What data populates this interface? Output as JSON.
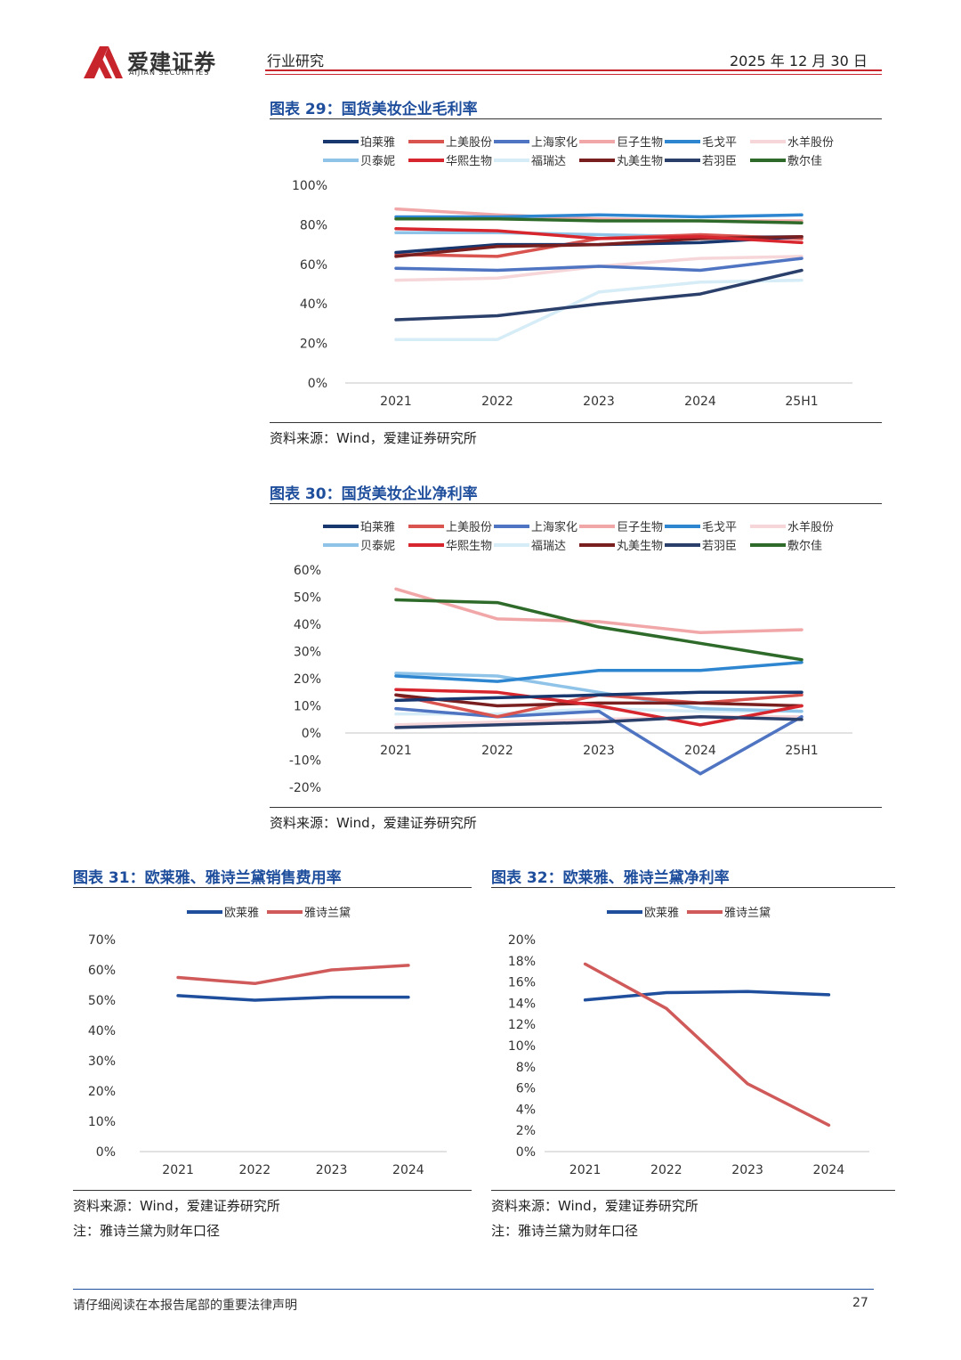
{
  "header": {
    "brand": "爱建证券",
    "brand_en": "AIJIAN SECURITIES",
    "section": "行业研究",
    "date": "2025 年 12 月 30 日"
  },
  "source_text": "资料来源：Wind，爱建证券研究所",
  "note_text": "注：雅诗兰黛为财年口径",
  "footer": {
    "disclaimer": "请仔细阅读在本报告尾部的重要法律声明",
    "page": "27"
  },
  "colors": {
    "accent_red": "#c8242c",
    "title_blue": "#1f4e9c",
    "珀莱雅": "#17376e",
    "上美股份": "#d9534f",
    "上海家化": "#4f74c2",
    "巨子生物": "#f1a7a7",
    "毛戈平": "#2e86d1",
    "水羊股份": "#f6d6d8",
    "贝泰妮": "#8fc3e8",
    "华熙生物": "#d8262e",
    "福瑞达": "#d6ecf6",
    "丸美生物": "#7a1f1f",
    "若羽臣": "#2b3f6b",
    "敷尔佳": "#2e6b2a",
    "欧莱雅": "#1f4e9c",
    "雅诗兰黛": "#d05a5a"
  },
  "charts": [
    {
      "id": "c29",
      "chart_data": {
        "type": "line",
        "title": "图表 29：国货美妆企业毛利率",
        "categories": [
          "2021",
          "2022",
          "2023",
          "2024",
          "25H1"
        ],
        "ylim": [
          0,
          100
        ],
        "yticks": [
          0,
          20,
          40,
          60,
          80,
          100
        ],
        "yticklabels": [
          "0%",
          "20%",
          "40%",
          "60%",
          "80%",
          "100%"
        ],
        "legend": [
          "珀莱雅",
          "上美股份",
          "上海家化",
          "巨子生物",
          "毛戈平",
          "水羊股份",
          "贝泰妮",
          "华熙生物",
          "福瑞达",
          "丸美生物",
          "若羽臣",
          "敷尔佳"
        ],
        "series": [
          {
            "name": "水羊股份",
            "values": [
              52,
              53,
              59,
              63,
              64
            ]
          },
          {
            "name": "福瑞达",
            "values": [
              22,
              22,
              46,
              51,
              52
            ]
          },
          {
            "name": "贝泰妮",
            "values": [
              76,
              76,
              75,
              74,
              74
            ]
          },
          {
            "name": "巨子生物",
            "values": [
              88,
              85,
              83,
              82,
              82
            ]
          },
          {
            "name": "上海家化",
            "values": [
              58,
              57,
              59,
              57,
              63
            ]
          },
          {
            "name": "上美股份",
            "values": [
              65,
              64,
              73,
              75,
              73
            ]
          },
          {
            "name": "珀莱雅",
            "values": [
              66,
              70,
              70,
              71,
              74
            ]
          },
          {
            "name": "丸美生物",
            "values": [
              64,
              69,
              70,
              73,
              74
            ]
          },
          {
            "name": "华熙生物",
            "values": [
              78,
              77,
              73,
              74,
              71
            ]
          },
          {
            "name": "毛戈平",
            "values": [
              84,
              84,
              85,
              84,
              85
            ]
          },
          {
            "name": "敷尔佳",
            "values": [
              83,
              83,
              82,
              82,
              81
            ]
          },
          {
            "name": "若羽臣",
            "values": [
              32,
              34,
              40,
              45,
              57
            ]
          }
        ]
      }
    },
    {
      "id": "c30",
      "chart_data": {
        "type": "line",
        "title": "图表 30：国货美妆企业净利率",
        "categories": [
          "2021",
          "2022",
          "2023",
          "2024",
          "25H1"
        ],
        "ylim": [
          -20,
          60
        ],
        "yticks": [
          -20,
          -10,
          0,
          10,
          20,
          30,
          40,
          50,
          60
        ],
        "yticklabels": [
          "-20%",
          "-10%",
          "0%",
          "10%",
          "20%",
          "30%",
          "40%",
          "50%",
          "60%"
        ],
        "legend": [
          "珀莱雅",
          "上美股份",
          "上海家化",
          "巨子生物",
          "毛戈平",
          "水羊股份",
          "贝泰妮",
          "华熙生物",
          "福瑞达",
          "丸美生物",
          "若羽臣",
          "敷尔佳"
        ],
        "series": [
          {
            "name": "水羊股份",
            "values": [
              3,
              4,
              5,
              6,
              6
            ]
          },
          {
            "name": "福瑞达",
            "values": [
              7,
              7,
              9,
              8,
              8
            ]
          },
          {
            "name": "巨子生物",
            "values": [
              53,
              42,
              41,
              37,
              38
            ]
          },
          {
            "name": "贝泰妮",
            "values": [
              22,
              21,
              15,
              9,
              8
            ]
          },
          {
            "name": "上海家化",
            "values": [
              9,
              6,
              8,
              -15,
              6
            ]
          },
          {
            "name": "上美股份",
            "values": [
              14,
              6,
              14,
              11,
              14
            ]
          },
          {
            "name": "丸美生物",
            "values": [
              14,
              10,
              11,
              11,
              10
            ]
          },
          {
            "name": "华熙生物",
            "values": [
              16,
              15,
              10,
              3,
              10
            ]
          },
          {
            "name": "珀莱雅",
            "values": [
              12,
              13,
              14,
              15,
              15
            ]
          },
          {
            "name": "毛戈平",
            "values": [
              21,
              19,
              23,
              23,
              26
            ]
          },
          {
            "name": "若羽臣",
            "values": [
              2,
              3,
              4,
              6,
              5
            ]
          },
          {
            "name": "敷尔佳",
            "values": [
              49,
              48,
              39,
              33,
              27
            ]
          }
        ]
      }
    },
    {
      "id": "c31",
      "chart_data": {
        "type": "line",
        "title": "图表 31：欧莱雅、雅诗兰黛销售费用率",
        "categories": [
          "2021",
          "2022",
          "2023",
          "2024"
        ],
        "ylim": [
          0,
          70
        ],
        "yticks": [
          0,
          10,
          20,
          30,
          40,
          50,
          60,
          70
        ],
        "yticklabels": [
          "0%",
          "10%",
          "20%",
          "30%",
          "40%",
          "50%",
          "60%",
          "70%"
        ],
        "legend": [
          "欧莱雅",
          "雅诗兰黛"
        ],
        "series": [
          {
            "name": "欧莱雅",
            "values": [
              51.5,
              50.0,
              51.0,
              51.0
            ]
          },
          {
            "name": "雅诗兰黛",
            "values": [
              57.5,
              55.5,
              60.0,
              61.5
            ]
          }
        ]
      }
    },
    {
      "id": "c32",
      "chart_data": {
        "type": "line",
        "title": "图表 32：欧莱雅、雅诗兰黛净利率",
        "categories": [
          "2021",
          "2022",
          "2023",
          "2024"
        ],
        "ylim": [
          0,
          20
        ],
        "yticks": [
          0,
          2,
          4,
          6,
          8,
          10,
          12,
          14,
          16,
          18,
          20
        ],
        "yticklabels": [
          "0%",
          "2%",
          "4%",
          "6%",
          "8%",
          "10%",
          "12%",
          "14%",
          "16%",
          "18%",
          "20%"
        ],
        "legend": [
          "欧莱雅",
          "雅诗兰黛"
        ],
        "series": [
          {
            "name": "欧莱雅",
            "values": [
              14.3,
              15.0,
              15.1,
              14.8
            ]
          },
          {
            "name": "雅诗兰黛",
            "values": [
              17.7,
              13.5,
              6.4,
              2.5
            ]
          }
        ]
      }
    }
  ]
}
